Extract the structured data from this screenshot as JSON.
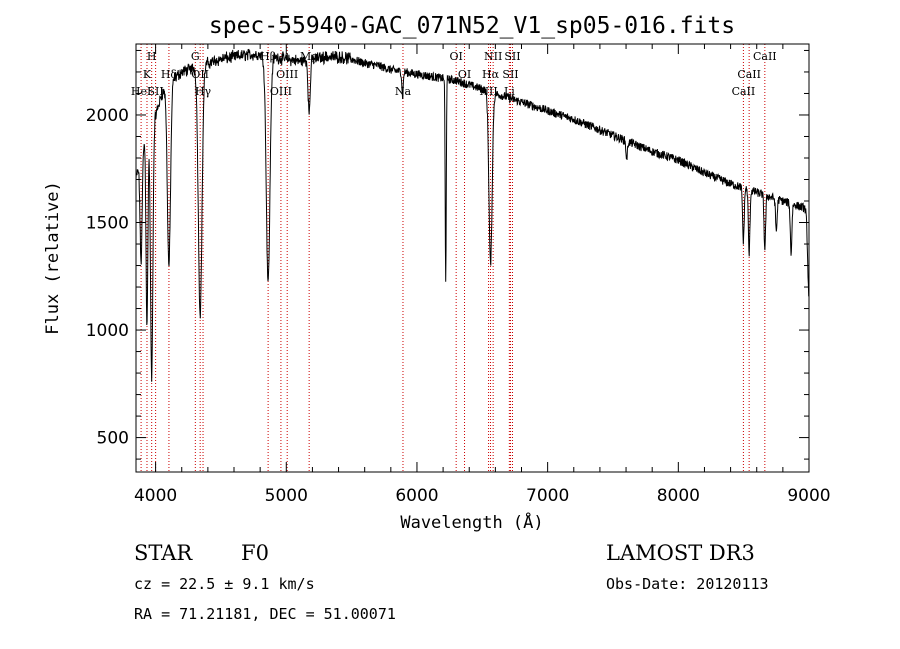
{
  "chart_data": {
    "type": "line",
    "title": "spec-55940-GAC_071N52_V1_sp05-016.fits",
    "xlabel": "Wavelength (Å)",
    "ylabel": "Flux (relative)",
    "xlim": [
      3850,
      9000
    ],
    "ylim": [
      340,
      2330
    ],
    "xticks": [
      4000,
      5000,
      6000,
      7000,
      8000,
      9000
    ],
    "yticks": [
      500,
      1000,
      1500,
      2000
    ],
    "series": [
      {
        "name": "spectrum",
        "continuum": {
          "x": [
            3850,
            3900,
            3950,
            4000,
            4050,
            4100,
            4200,
            4300,
            4400,
            4500,
            4600,
            4700,
            4800,
            4900,
            5000,
            5100,
            5200,
            5300,
            5400,
            5500,
            5600,
            5700,
            5800,
            5900,
            6000,
            6100,
            6200,
            6300,
            6400,
            6500,
            6600,
            6700,
            6800,
            7000,
            7200,
            7400,
            7600,
            7800,
            8000,
            8200,
            8400,
            8600,
            8800,
            9000
          ],
          "y": [
            1700,
            1850,
            1950,
            2000,
            2100,
            2150,
            2200,
            2220,
            2240,
            2260,
            2270,
            2280,
            2280,
            2270,
            2260,
            2250,
            2260,
            2270,
            2270,
            2260,
            2240,
            2230,
            2210,
            2200,
            2190,
            2180,
            2170,
            2160,
            2140,
            2120,
            2100,
            2080,
            2060,
            2020,
            1980,
            1930,
            1880,
            1830,
            1790,
            1730,
            1680,
            1640,
            1600,
            1560
          ]
        },
        "absorption_lines": [
          {
            "center": 3889,
            "depth": 500,
            "width": 8
          },
          {
            "center": 3934,
            "depth": 900,
            "width": 7
          },
          {
            "center": 3970,
            "depth": 1200,
            "width": 9
          },
          {
            "center": 4102,
            "depth": 850,
            "width": 12
          },
          {
            "center": 4341,
            "depth": 1150,
            "width": 14
          },
          {
            "center": 4861,
            "depth": 1050,
            "width": 14
          },
          {
            "center": 5175,
            "depth": 250,
            "width": 8
          },
          {
            "center": 5890,
            "depth": 120,
            "width": 5
          },
          {
            "center": 6220,
            "depth": 950,
            "width": 4
          },
          {
            "center": 6563,
            "depth": 800,
            "width": 12
          },
          {
            "center": 7605,
            "depth": 80,
            "width": 6
          },
          {
            "center": 8498,
            "depth": 250,
            "width": 6
          },
          {
            "center": 8542,
            "depth": 300,
            "width": 6
          },
          {
            "center": 8662,
            "depth": 250,
            "width": 6
          },
          {
            "center": 8750,
            "depth": 150,
            "width": 6
          },
          {
            "center": 8863,
            "depth": 230,
            "width": 6
          },
          {
            "center": 9000,
            "depth": 400,
            "width": 10
          }
        ]
      }
    ],
    "line_markers": [
      {
        "wavelength": 3889,
        "label": "HeI",
        "row": 3
      },
      {
        "wavelength": 3934,
        "label": "K",
        "row": 2
      },
      {
        "wavelength": 3970,
        "label": "H",
        "row": 1
      },
      {
        "wavelength": 4000,
        "label": "SII",
        "row": 3
      },
      {
        "wavelength": 4102,
        "label": "Hδ",
        "row": 2
      },
      {
        "wavelength": 4304,
        "label": "G",
        "row": 1
      },
      {
        "wavelength": 4341,
        "label": "OII",
        "row": 2
      },
      {
        "wavelength": 4363,
        "label": "Hγ",
        "row": 3
      },
      {
        "wavelength": 4861,
        "label": "Hβ",
        "row": 1
      },
      {
        "wavelength": 4959,
        "label": "OIII",
        "row": 3
      },
      {
        "wavelength": 5007,
        "label": "OIII",
        "row": 2
      },
      {
        "wavelength": 5175,
        "label": "Mg",
        "row": 1
      },
      {
        "wavelength": 5893,
        "label": "Na",
        "row": 3
      },
      {
        "wavelength": 6300,
        "label": "OI",
        "row": 1
      },
      {
        "wavelength": 6364,
        "label": "OI",
        "row": 2
      },
      {
        "wavelength": 6548,
        "label": "NII",
        "row": 3
      },
      {
        "wavelength": 6563,
        "label": "Hα",
        "row": 2
      },
      {
        "wavelength": 6583,
        "label": "NII",
        "row": 1
      },
      {
        "wavelength": 6707,
        "label": "Li",
        "row": 3
      },
      {
        "wavelength": 6716,
        "label": "SII",
        "row": 2
      },
      {
        "wavelength": 6731,
        "label": "SII",
        "row": 1
      },
      {
        "wavelength": 8498,
        "label": "CaII",
        "row": 3
      },
      {
        "wavelength": 8542,
        "label": "CaII",
        "row": 2
      },
      {
        "wavelength": 8662,
        "label": "CaII",
        "row": 1
      }
    ],
    "marker_color": "#cc0000",
    "line_color": "#000000"
  },
  "info": {
    "object_class": "STAR",
    "subclass": "F0",
    "survey": "LAMOST DR3",
    "redshift": "cz = 22.5 ± 9.1 km/s",
    "obs_date": "Obs-Date: 20120113",
    "coords": "RA =  71.21181, DEC =  51.00071"
  }
}
